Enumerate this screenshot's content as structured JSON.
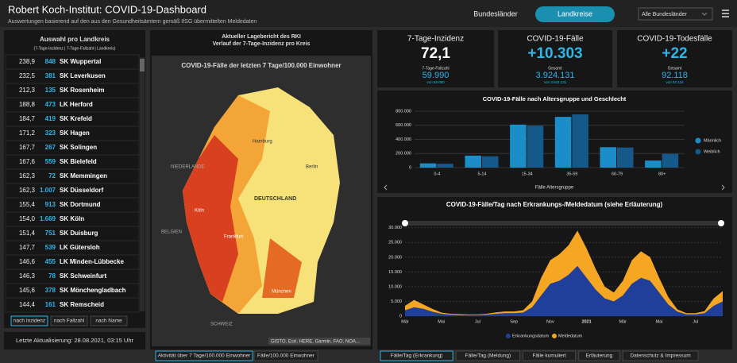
{
  "header": {
    "title": "Robert Koch-Institut: COVID-19-Dashboard",
    "subtitle": "Auswertungen basierend auf den aus den Gesundheitsämtern gemäß IfSG übermittelten Meldedaten",
    "tab1": "Bundesländer",
    "tab2": "Landkreise",
    "dropdown": "Alle Bundesländer"
  },
  "sidebar": {
    "title": "Auswahl pro Landkreis",
    "legend": "(7-Tage-Inzidenz | 7-Tage-Fallzahl | Landkreis)",
    "rows": [
      [
        "238,9",
        "848",
        "SK Wuppertal"
      ],
      [
        "232,5",
        "381",
        "SK Leverkusen"
      ],
      [
        "212,3",
        "135",
        "SK Rosenheim"
      ],
      [
        "188,8",
        "473",
        "LK Herford"
      ],
      [
        "184,7",
        "419",
        "SK Krefeld"
      ],
      [
        "171,2",
        "323",
        "SK Hagen"
      ],
      [
        "167,7",
        "267",
        "SK Solingen"
      ],
      [
        "167,6",
        "559",
        "SK Bielefeld"
      ],
      [
        "162,3",
        "72",
        "SK Memmingen"
      ],
      [
        "162,3",
        "1.007",
        "SK Düsseldorf"
      ],
      [
        "155,4",
        "913",
        "SK Dortmund"
      ],
      [
        "154,0",
        "1.669",
        "SK Köln"
      ],
      [
        "151,4",
        "751",
        "SK Duisburg"
      ],
      [
        "147,7",
        "539",
        "LK Gütersloh"
      ],
      [
        "146,6",
        "455",
        "LK Minden-Lübbecke"
      ],
      [
        "146,3",
        "78",
        "SK Schweinfurt"
      ],
      [
        "145,6",
        "378",
        "SK Mönchengladbach"
      ],
      [
        "144,4",
        "161",
        "SK Remscheid"
      ]
    ],
    "sort": [
      "nach Inzidenz",
      "nach Fallzahl",
      "nach Name"
    ],
    "updated": "Letzte Aktualisierung: 28.08.2021, 03:15 Uhr"
  },
  "map": {
    "heading1": "Aktueller Lagebericht des RKI",
    "heading2": "Verlauf der 7-Tage-Inzidenz pro Kreis",
    "title": "COVID-19-Fälle der letzten 7 Tage/100.000 Einwohner",
    "labels": [
      "NIEDERLANDE",
      "DEUTSCHLAND",
      "Hamburg",
      "Berlin",
      "Köln",
      "Frankfurt",
      "München",
      "BELGIEN",
      "SCHWEIZ"
    ],
    "attribution": "GISTO, Esri, HERE, Garmin, FAO, NOA...",
    "tabs": [
      "Aktivität über 7 Tage/100.000 Einwohner",
      "Fälle/100.000 Einwohner"
    ]
  },
  "kpis": [
    {
      "title": "7-Tage-Inzidenz",
      "value": "72,1",
      "sublabel": "7-Tage-Fallzahl",
      "subvalue": "59.990",
      "note": "von 59.990"
    },
    {
      "title": "COVID-19-Fälle",
      "value": "+10.303",
      "sublabel": "Gesamt",
      "subvalue": "3.924.131",
      "note": "von 3.924.131"
    },
    {
      "title": "COVID-19-Todesfälle",
      "value": "+22",
      "sublabel": "Gesamt",
      "subvalue": "92.118",
      "note": "von 92.118"
    }
  ],
  "bottom_tabs": [
    "Fälle/Tag (Erkrankung)",
    "Fälle/Tag (Meldung)",
    "Fälle kumuliert",
    "Erläuterung",
    "Datenschutz & Impressum"
  ],
  "chart_data": [
    {
      "type": "bar",
      "title": "COVID-19-Fälle nach Altersgruppe und Geschlecht",
      "x_label": "Fälle Altersgruppe",
      "categories": [
        "0-4",
        "5-14",
        "15-34",
        "35-59",
        "60-79",
        "80+"
      ],
      "series": [
        {
          "name": "Männlich",
          "color": "#1b8ec9",
          "values": [
            60000,
            170000,
            610000,
            720000,
            290000,
            100000
          ]
        },
        {
          "name": "Weiblich",
          "color": "#15588a",
          "values": [
            55000,
            160000,
            595000,
            755000,
            285000,
            195000
          ]
        }
      ],
      "ylim": [
        0,
        800000
      ],
      "yticks": [
        0,
        {
          "value": 200000,
          "label": "200.000"
        },
        {
          "value": 400000,
          "label": "400.000"
        },
        {
          "value": 600000,
          "label": "600.000"
        },
        {
          "value": 800000,
          "label": "800.000"
        }
      ],
      "legend": "right"
    },
    {
      "type": "stacked_area",
      "title": "COVID-19-Fälle/Tag nach Erkrankungs-/Meldedatum (siehe Erläuterung)",
      "categories": [
        "Mär",
        null,
        null,
        null,
        "Mai",
        null,
        null,
        null,
        "Jul",
        null,
        null,
        null,
        "Sep",
        null,
        null,
        null,
        "Nov",
        null,
        null,
        null,
        "2021",
        null,
        null,
        null,
        "Mär",
        null,
        null,
        null,
        "Mai",
        null,
        null,
        null,
        "Jul",
        null,
        null,
        null
      ],
      "series": [
        {
          "name": "Erkrankungsdatum",
          "color": "#1f3f9a",
          "values": [
            2000,
            3000,
            2500,
            1500,
            800,
            500,
            400,
            400,
            400,
            500,
            800,
            1000,
            1000,
            1200,
            3000,
            7000,
            11000,
            12000,
            14000,
            17000,
            13000,
            9000,
            6000,
            5000,
            7000,
            11000,
            13000,
            12000,
            8000,
            4000,
            1500,
            600,
            600,
            1000,
            3500,
            5000
          ]
        },
        {
          "name": "Meldedatum",
          "color": "#f5a623",
          "values": [
            1500,
            2500,
            1500,
            1000,
            400,
            300,
            300,
            200,
            200,
            300,
            500,
            600,
            600,
            800,
            2000,
            6000,
            8000,
            9000,
            10000,
            12000,
            10000,
            7000,
            4000,
            3000,
            5000,
            8000,
            9000,
            8000,
            5000,
            2500,
            800,
            400,
            400,
            700,
            2500,
            3500
          ]
        }
      ],
      "ylim": [
        0,
        31000
      ],
      "yticks": [
        0,
        {
          "value": 5000,
          "label": "5.000"
        },
        {
          "value": 10000,
          "label": "10.000"
        },
        {
          "value": 15000,
          "label": "15.000"
        },
        {
          "value": 20000,
          "label": "20.000"
        },
        {
          "value": 25000,
          "label": "25.000"
        },
        {
          "value": 30000,
          "label": "30.000"
        }
      ]
    }
  ]
}
